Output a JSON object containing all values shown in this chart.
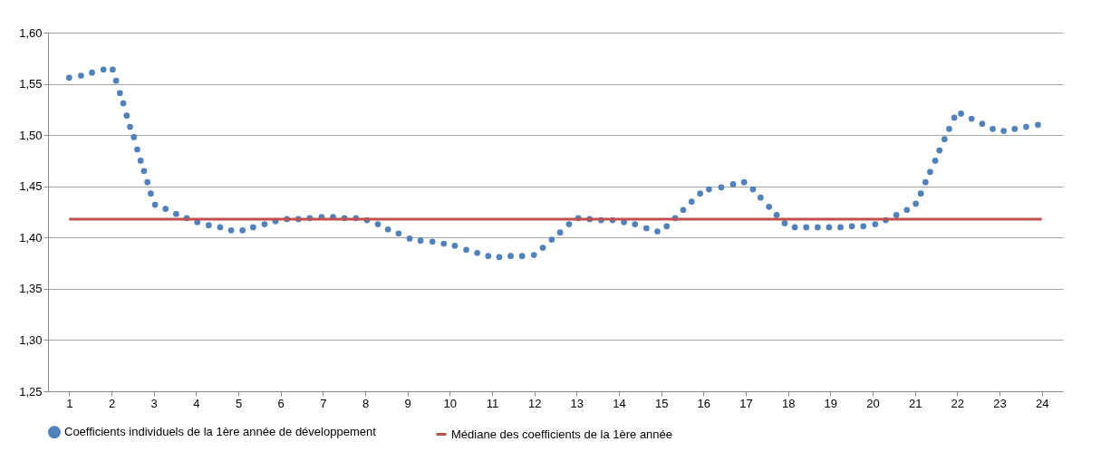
{
  "chart_data": {
    "type": "scatter",
    "grid": "y",
    "legend": "bottom",
    "xlim": [
      0.5,
      24.5
    ],
    "xticks": [
      1,
      2,
      3,
      4,
      5,
      6,
      7,
      8,
      9,
      10,
      11,
      12,
      13,
      14,
      15,
      16,
      17,
      18,
      19,
      20,
      21,
      22,
      23,
      24
    ],
    "ylim": [
      1.25,
      1.6
    ],
    "yticks": [
      {
        "value": 1.25,
        "label": "1,25"
      },
      {
        "value": 1.3,
        "label": "1,30"
      },
      {
        "value": 1.35,
        "label": "1,35"
      },
      {
        "value": 1.4,
        "label": "1,40"
      },
      {
        "value": 1.45,
        "label": "1,45"
      },
      {
        "value": 1.5,
        "label": "1,50"
      },
      {
        "value": 1.55,
        "label": "1,55"
      },
      {
        "value": 1.6,
        "label": "1,60"
      }
    ],
    "series": [
      {
        "name": "Coefficients individuels de la 1ère année de développement",
        "marker": "circle",
        "color": "#4f81bd",
        "x": [
          1.0,
          1.28,
          1.54,
          1.81,
          2.03,
          2.11,
          2.2,
          2.28,
          2.36,
          2.44,
          2.53,
          2.61,
          2.69,
          2.77,
          2.85,
          2.93,
          3.03,
          3.28,
          3.53,
          3.78,
          4.03,
          4.3,
          4.57,
          4.83,
          5.1,
          5.35,
          5.62,
          5.88,
          6.15,
          6.42,
          6.69,
          6.97,
          7.24,
          7.51,
          7.78,
          8.04,
          8.3,
          8.54,
          8.79,
          9.05,
          9.31,
          9.59,
          9.86,
          10.12,
          10.39,
          10.65,
          10.91,
          11.17,
          11.44,
          11.71,
          11.99,
          12.2,
          12.41,
          12.61,
          12.82,
          13.04,
          13.31,
          13.58,
          13.85,
          14.12,
          14.38,
          14.65,
          14.91,
          15.13,
          15.33,
          15.52,
          15.72,
          15.92,
          16.13,
          16.42,
          16.7,
          16.96,
          17.17,
          17.35,
          17.55,
          17.73,
          17.92,
          18.16,
          18.43,
          18.7,
          18.97,
          19.24,
          19.51,
          19.78,
          20.06,
          20.31,
          20.56,
          20.81,
          21.02,
          21.14,
          21.25,
          21.36,
          21.48,
          21.58,
          21.7,
          21.81,
          21.93,
          22.09,
          22.34,
          22.59,
          22.84,
          23.1,
          23.36,
          23.63,
          23.91
        ],
        "values": [
          1.556,
          1.558,
          1.561,
          1.564,
          1.564,
          1.553,
          1.541,
          1.531,
          1.519,
          1.508,
          1.498,
          1.486,
          1.475,
          1.465,
          1.454,
          1.443,
          1.432,
          1.428,
          1.423,
          1.419,
          1.415,
          1.412,
          1.41,
          1.407,
          1.407,
          1.41,
          1.413,
          1.416,
          1.418,
          1.418,
          1.419,
          1.42,
          1.42,
          1.419,
          1.419,
          1.417,
          1.413,
          1.408,
          1.404,
          1.399,
          1.397,
          1.396,
          1.394,
          1.392,
          1.388,
          1.385,
          1.382,
          1.381,
          1.382,
          1.382,
          1.383,
          1.39,
          1.398,
          1.405,
          1.413,
          1.419,
          1.418,
          1.417,
          1.417,
          1.415,
          1.413,
          1.409,
          1.406,
          1.411,
          1.419,
          1.427,
          1.435,
          1.443,
          1.447,
          1.449,
          1.452,
          1.454,
          1.447,
          1.439,
          1.43,
          1.422,
          1.414,
          1.41,
          1.41,
          1.41,
          1.41,
          1.41,
          1.411,
          1.411,
          1.413,
          1.417,
          1.422,
          1.427,
          1.433,
          1.443,
          1.454,
          1.464,
          1.475,
          1.485,
          1.496,
          1.506,
          1.517,
          1.521,
          1.516,
          1.511,
          1.506,
          1.504,
          1.506,
          1.508,
          1.51
        ]
      },
      {
        "name": "Médiane des coefficients de la 1ère année",
        "type": "line",
        "color": "#c0504d",
        "x": [
          1,
          24
        ],
        "values": [
          1.418,
          1.418
        ]
      }
    ]
  }
}
